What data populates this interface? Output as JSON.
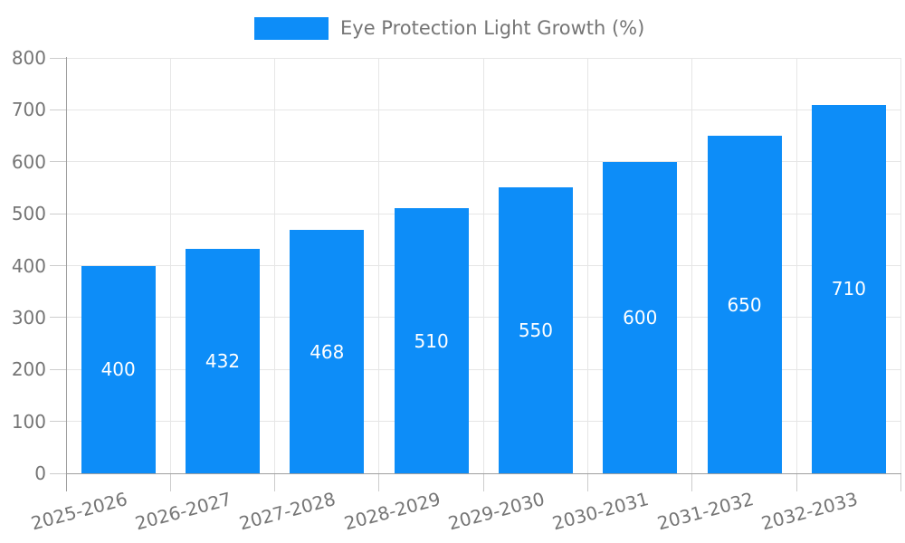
{
  "legend": {
    "label": "Eye Protection Light Growth (%)"
  },
  "chart_data": {
    "type": "bar",
    "title": "",
    "categories": [
      "2025-2026",
      "2026-2027",
      "2027-2028",
      "2028-2029",
      "2029-2030",
      "2030-2031",
      "2031-2032",
      "2032-2033"
    ],
    "values": [
      400,
      432,
      468,
      510,
      550,
      600,
      650,
      710
    ],
    "series": [
      {
        "name": "Eye Protection Light Growth (%)",
        "values": [
          400,
          432,
          468,
          510,
          550,
          600,
          650,
          710
        ]
      }
    ],
    "xlabel": "",
    "ylabel": "",
    "ylim": [
      0,
      800
    ],
    "yticks": [
      0,
      100,
      200,
      300,
      400,
      500,
      600,
      700,
      800
    ],
    "grid": "horizontal-and-vertical gridlines on",
    "legend_position": "top-center",
    "value_labels": "white, centered inside bars",
    "xtick_label_rotation_deg": -15,
    "colors": {
      "bar": "#0d8df8",
      "value_label": "#ffffff",
      "axis_text": "#757575",
      "gridline": "#e6e6e6",
      "axis_line": "#9e9e9e",
      "tick_mark": "#cccccc",
      "background": "#ffffff"
    }
  }
}
